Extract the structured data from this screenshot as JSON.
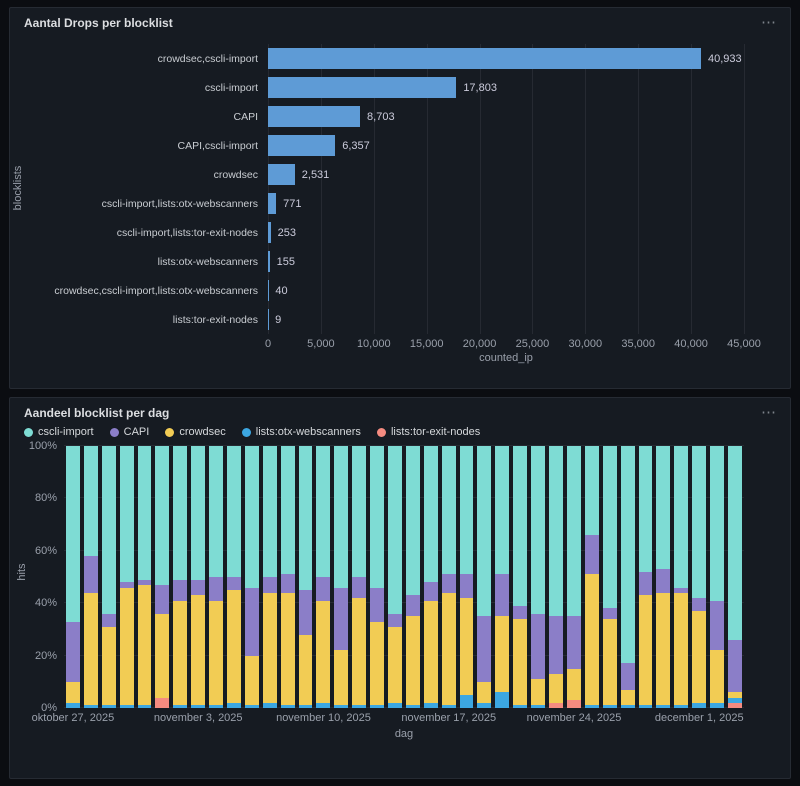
{
  "icons": {
    "panel_menu": "⋯"
  },
  "theme": {
    "page_bg": "#0b0d11",
    "panel_bg": "#161b22",
    "grid_color": "rgba(204,204,220,0.09)"
  },
  "panels": [
    {
      "title": "Aantal Drops per blocklist"
    },
    {
      "title": "Aandeel blocklist per dag"
    }
  ],
  "chart_data": [
    {
      "type": "bar",
      "orientation": "horizontal",
      "title": "Aantal Drops per blocklist",
      "ylabel": "blocklists",
      "xlabel": "counted_ip",
      "xlim": [
        0,
        45000
      ],
      "grid": true,
      "bar_color": "#5e9bd6",
      "categories": [
        "crowdsec,cscli-import",
        "cscli-import",
        "CAPI",
        "CAPI,cscli-import",
        "crowdsec",
        "cscli-import,lists:otx-webscanners",
        "cscli-import,lists:tor-exit-nodes",
        "lists:otx-webscanners",
        "crowdsec,cscli-import,lists:otx-webscanners",
        "lists:tor-exit-nodes"
      ],
      "values": [
        40933,
        17803,
        8703,
        6357,
        2531,
        771,
        253,
        155,
        40,
        9
      ],
      "value_labels": [
        "40,933",
        "17,803",
        "8,703",
        "6,357",
        "2,531",
        "771",
        "253",
        "155",
        "40",
        "9"
      ],
      "x_ticks": [
        "0",
        "5,000",
        "10,000",
        "15,000",
        "20,000",
        "25,000",
        "30,000",
        "35,000",
        "40,000",
        "45,000"
      ]
    },
    {
      "type": "bar",
      "stacked": "percent",
      "title": "Aandeel blocklist per dag",
      "ylabel": "hits",
      "xlabel": "dag",
      "ylim": [
        0,
        100
      ],
      "grid": true,
      "legend_position": "top",
      "y_ticks": [
        "0%",
        "20%",
        "40%",
        "60%",
        "80%",
        "100%"
      ],
      "x_tick_positions": [
        0,
        7,
        14,
        21,
        28,
        35
      ],
      "x_tick_labels": [
        "oktober 27, 2025",
        "november 3, 2025",
        "november 10, 2025",
        "november 17, 2025",
        "november 24, 2025",
        "december 1, 2025"
      ],
      "stack_order_note": "stacked bottom-to-top in reverse legend order",
      "series": [
        {
          "name": "cscli-import",
          "color": "#7edcd4",
          "values": [
            67,
            42,
            64,
            52,
            51,
            53,
            51,
            51,
            50,
            50,
            54,
            50,
            49,
            55,
            50,
            54,
            50,
            54,
            64,
            57,
            52,
            49,
            49,
            65,
            49,
            61,
            64,
            65,
            65,
            34,
            62,
            83,
            48,
            47,
            54,
            58,
            59,
            74
          ]
        },
        {
          "name": "CAPI",
          "color": "#8b7ec8",
          "values": [
            23,
            14,
            5,
            2,
            2,
            11,
            8,
            6,
            9,
            5,
            26,
            6,
            7,
            17,
            9,
            24,
            8,
            13,
            5,
            8,
            7,
            7,
            9,
            25,
            16,
            5,
            25,
            22,
            20,
            15,
            4,
            10,
            9,
            9,
            2,
            5,
            19,
            20
          ]
        },
        {
          "name": "crowdsec",
          "color": "#f2cc54",
          "values": [
            8,
            43,
            30,
            45,
            46,
            32,
            40,
            42,
            40,
            43,
            19,
            42,
            43,
            27,
            39,
            21,
            41,
            32,
            29,
            34,
            39,
            43,
            37,
            8,
            29,
            33,
            10,
            11,
            12,
            50,
            33,
            6,
            42,
            43,
            43,
            35,
            20,
            2
          ]
        },
        {
          "name": "lists:otx-webscanners",
          "color": "#3ca7e2",
          "values": [
            2,
            1,
            1,
            1,
            1,
            0,
            1,
            1,
            1,
            2,
            1,
            2,
            1,
            1,
            2,
            1,
            1,
            1,
            2,
            1,
            2,
            1,
            5,
            2,
            6,
            1,
            1,
            0,
            0,
            1,
            1,
            1,
            1,
            1,
            1,
            2,
            2,
            2
          ]
        },
        {
          "name": "lists:tor-exit-nodes",
          "color": "#f58b80",
          "values": [
            0,
            0,
            0,
            0,
            0,
            4,
            0,
            0,
            0,
            0,
            0,
            0,
            0,
            0,
            0,
            0,
            0,
            0,
            0,
            0,
            0,
            0,
            0,
            0,
            0,
            0,
            0,
            2,
            3,
            0,
            0,
            0,
            0,
            0,
            0,
            0,
            0,
            2
          ]
        }
      ]
    }
  ]
}
